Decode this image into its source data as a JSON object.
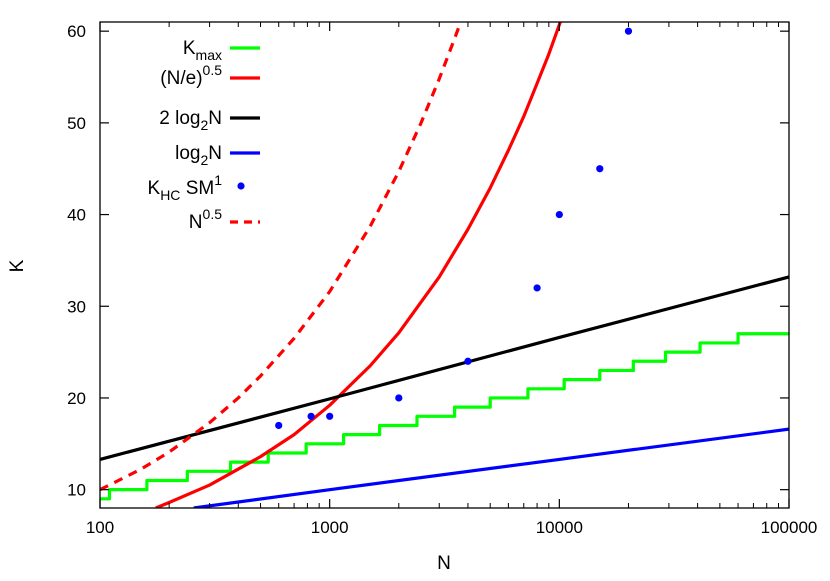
{
  "chart_data": {
    "type": "line",
    "xscale": "log",
    "xlim": [
      100,
      100000
    ],
    "ylim": [
      8,
      61
    ],
    "xlabel": "N",
    "ylabel": "K",
    "xticks": [
      {
        "value": 100,
        "label": "100"
      },
      {
        "value": 1000,
        "label": "1000"
      },
      {
        "value": 10000,
        "label": "10000"
      },
      {
        "value": 100000,
        "label": "100000"
      }
    ],
    "yticks": [
      {
        "value": 10,
        "label": "10"
      },
      {
        "value": 20,
        "label": "20"
      },
      {
        "value": 30,
        "label": "30"
      },
      {
        "value": 40,
        "label": "40"
      },
      {
        "value": 50,
        "label": "50"
      },
      {
        "value": 60,
        "label": "60"
      }
    ],
    "grid": false,
    "legend_position": "top-left",
    "series": [
      {
        "name": "Kmax",
        "legend": {
          "base": "K",
          "sub": "max",
          "sup": "",
          "tail": ""
        },
        "kind": "step",
        "color": "#00ff00",
        "dash": "solid",
        "points": [
          {
            "x": 100,
            "y": 9
          },
          {
            "x": 110,
            "y": 10
          },
          {
            "x": 160,
            "y": 11
          },
          {
            "x": 240,
            "y": 12
          },
          {
            "x": 370,
            "y": 13
          },
          {
            "x": 540,
            "y": 14
          },
          {
            "x": 790,
            "y": 15
          },
          {
            "x": 1150,
            "y": 16
          },
          {
            "x": 1650,
            "y": 17
          },
          {
            "x": 2400,
            "y": 18
          },
          {
            "x": 3500,
            "y": 19
          },
          {
            "x": 5000,
            "y": 20
          },
          {
            "x": 7300,
            "y": 21
          },
          {
            "x": 10500,
            "y": 22
          },
          {
            "x": 15000,
            "y": 23
          },
          {
            "x": 21000,
            "y": 24
          },
          {
            "x": 29000,
            "y": 25
          },
          {
            "x": 41000,
            "y": 26
          },
          {
            "x": 60000,
            "y": 27
          },
          {
            "x": 87000,
            "y": 27
          },
          {
            "x": 100000,
            "y": 27
          }
        ]
      },
      {
        "name": "(N/e)^0.5",
        "legend": {
          "base": "(N/e)",
          "sub": "",
          "sup": "0.5",
          "tail": ""
        },
        "kind": "line",
        "color": "#ff0000",
        "dash": "solid",
        "points": [
          {
            "x": 175,
            "y": 8
          },
          {
            "x": 200,
            "y": 8.6
          },
          {
            "x": 300,
            "y": 10.5
          },
          {
            "x": 500,
            "y": 13.6
          },
          {
            "x": 700,
            "y": 16
          },
          {
            "x": 1000,
            "y": 19.2
          },
          {
            "x": 1500,
            "y": 23.5
          },
          {
            "x": 2000,
            "y": 27.1
          },
          {
            "x": 3000,
            "y": 33.2
          },
          {
            "x": 4000,
            "y": 38.4
          },
          {
            "x": 5000,
            "y": 42.9
          },
          {
            "x": 6000,
            "y": 47
          },
          {
            "x": 7000,
            "y": 50.7
          },
          {
            "x": 8000,
            "y": 54.3
          },
          {
            "x": 9000,
            "y": 57.5
          },
          {
            "x": 10000,
            "y": 60.7
          },
          {
            "x": 10100,
            "y": 61
          }
        ]
      },
      {
        "name": "2 log2N",
        "legend": {
          "base": "2 log",
          "sub": "2",
          "sup": "",
          "tail": "N"
        },
        "kind": "line",
        "color": "#000000",
        "dash": "solid",
        "points": [
          {
            "x": 100,
            "y": 13.3
          },
          {
            "x": 1000,
            "y": 19.9
          },
          {
            "x": 10000,
            "y": 26.6
          },
          {
            "x": 100000,
            "y": 33.2
          }
        ]
      },
      {
        "name": "log2N",
        "legend": {
          "base": "log",
          "sub": "2",
          "sup": "",
          "tail": "N"
        },
        "kind": "line",
        "color": "#0000ff",
        "dash": "solid",
        "points": [
          {
            "x": 256,
            "y": 8
          },
          {
            "x": 1000,
            "y": 10
          },
          {
            "x": 10000,
            "y": 13.3
          },
          {
            "x": 100000,
            "y": 16.6
          }
        ]
      },
      {
        "name": "KHC SM1",
        "legend": {
          "base": "K",
          "sub": "HC",
          "sup": "",
          "tail": " SM",
          "tail_sup": "1"
        },
        "kind": "scatter",
        "color": "#0000ff",
        "dash": "solid",
        "points": [
          {
            "x": 600,
            "y": 17
          },
          {
            "x": 830,
            "y": 18
          },
          {
            "x": 1000,
            "y": 18
          },
          {
            "x": 2000,
            "y": 20
          },
          {
            "x": 4000,
            "y": 24
          },
          {
            "x": 8000,
            "y": 32
          },
          {
            "x": 10000,
            "y": 40
          },
          {
            "x": 15000,
            "y": 45
          },
          {
            "x": 20000,
            "y": 60
          }
        ]
      },
      {
        "name": "N^0.5",
        "legend": {
          "base": "N",
          "sub": "",
          "sup": "0.5",
          "tail": ""
        },
        "kind": "line",
        "color": "#ff0000",
        "dash": "dashed",
        "points": [
          {
            "x": 100,
            "y": 10
          },
          {
            "x": 150,
            "y": 12.2
          },
          {
            "x": 200,
            "y": 14.1
          },
          {
            "x": 300,
            "y": 17.3
          },
          {
            "x": 400,
            "y": 20
          },
          {
            "x": 500,
            "y": 22.4
          },
          {
            "x": 700,
            "y": 26.5
          },
          {
            "x": 1000,
            "y": 31.6
          },
          {
            "x": 1500,
            "y": 38.7
          },
          {
            "x": 2000,
            "y": 44.7
          },
          {
            "x": 2500,
            "y": 50
          },
          {
            "x": 3000,
            "y": 54.8
          },
          {
            "x": 3500,
            "y": 59.2
          },
          {
            "x": 3720,
            "y": 61
          }
        ]
      }
    ]
  }
}
